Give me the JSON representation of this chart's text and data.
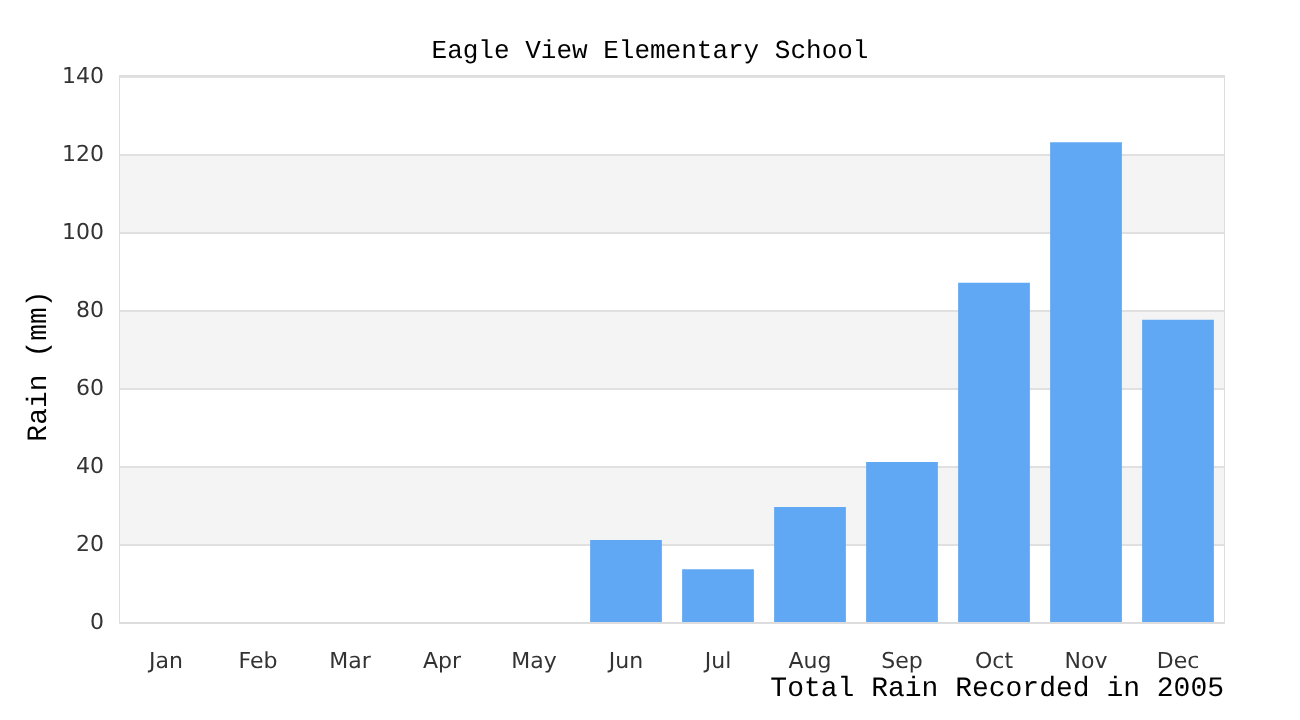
{
  "chart_data": {
    "type": "bar",
    "title": "Eagle View Elementary School",
    "xlabel": "Total Rain Recorded in 2005",
    "ylabel": "Rain (mm)",
    "categories": [
      "Jan",
      "Feb",
      "Mar",
      "Apr",
      "May",
      "Jun",
      "Jul",
      "Aug",
      "Sep",
      "Oct",
      "Nov",
      "Dec"
    ],
    "values": [
      0,
      0,
      0,
      0,
      0,
      21,
      13.5,
      29.5,
      41,
      87,
      123,
      77.5
    ],
    "color": "#60a8f4",
    "ylim": [
      0,
      140
    ],
    "yticks": [
      0,
      20,
      40,
      60,
      80,
      100,
      120,
      140
    ],
    "grid": "y"
  }
}
